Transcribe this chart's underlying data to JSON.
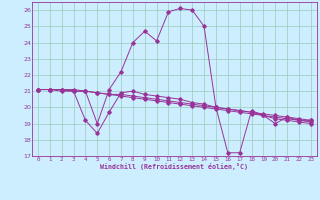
{
  "xlabel": "Windchill (Refroidissement éolien,°C)",
  "background_color": "#cceeff",
  "line_color": "#993399",
  "grid_color": "#99ccbb",
  "ylim": [
    17,
    26.5
  ],
  "xlim": [
    -0.5,
    23.5
  ],
  "yticks": [
    17,
    18,
    19,
    20,
    21,
    22,
    23,
    24,
    25,
    26
  ],
  "xticks": [
    0,
    1,
    2,
    3,
    4,
    5,
    6,
    7,
    8,
    9,
    10,
    11,
    12,
    13,
    14,
    15,
    16,
    17,
    18,
    19,
    20,
    21,
    22,
    23
  ],
  "hours": [
    0,
    1,
    2,
    3,
    4,
    5,
    6,
    7,
    8,
    9,
    10,
    11,
    12,
    13,
    14,
    15,
    16,
    17,
    18,
    19,
    20,
    21,
    22,
    23
  ],
  "line1": [
    21.1,
    21.1,
    21.1,
    21.1,
    21.0,
    19.0,
    21.1,
    22.2,
    24.0,
    24.7,
    24.1,
    25.9,
    26.1,
    26.0,
    25.0,
    20.0,
    17.2,
    17.2,
    19.8,
    19.5,
    19.0,
    19.4,
    19.2,
    19.2
  ],
  "line2": [
    21.1,
    21.1,
    21.1,
    21.0,
    19.2,
    18.4,
    19.7,
    20.9,
    21.0,
    20.8,
    20.7,
    20.6,
    20.5,
    20.3,
    20.2,
    20.0,
    19.9,
    19.8,
    19.7,
    19.5,
    19.3,
    19.2,
    19.1,
    19.0
  ],
  "line3": [
    21.1,
    21.1,
    21.1,
    21.0,
    21.0,
    20.9,
    20.8,
    20.8,
    20.7,
    20.6,
    20.5,
    20.4,
    20.3,
    20.2,
    20.1,
    20.0,
    19.9,
    19.8,
    19.7,
    19.6,
    19.5,
    19.4,
    19.3,
    19.2
  ],
  "line4": [
    21.1,
    21.1,
    21.0,
    21.0,
    21.0,
    20.9,
    20.8,
    20.7,
    20.6,
    20.5,
    20.4,
    20.3,
    20.2,
    20.1,
    20.0,
    19.9,
    19.8,
    19.7,
    19.6,
    19.5,
    19.4,
    19.3,
    19.2,
    19.1
  ]
}
